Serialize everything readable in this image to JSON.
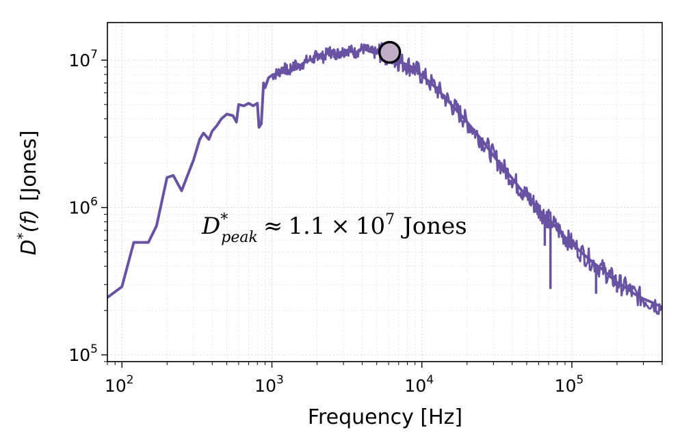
{
  "chart_data": {
    "type": "line",
    "title": "",
    "xlabel": "Frequency [Hz]",
    "ylabel_main": "D",
    "ylabel_sup": "*",
    "ylabel_rest": "(f)",
    "ylabel_unit": "[Jones]",
    "xscale": "log",
    "yscale": "log",
    "xlim": [
      80,
      400000
    ],
    "ylim": [
      90000,
      18000000
    ],
    "x_ticks": [
      {
        "value": 100,
        "base": "10",
        "exp": "2"
      },
      {
        "value": 1000,
        "base": "10",
        "exp": "3"
      },
      {
        "value": 10000,
        "base": "10",
        "exp": "4"
      },
      {
        "value": 100000,
        "base": "10",
        "exp": "5"
      }
    ],
    "y_ticks": [
      {
        "value": 100000,
        "base": "10",
        "exp": "5"
      },
      {
        "value": 1000000,
        "base": "10",
        "exp": "6"
      },
      {
        "value": 10000000,
        "base": "10",
        "exp": "7"
      }
    ],
    "grid": true,
    "line_color": "#6a52a3",
    "marker_fill": "#c0aec9",
    "series": [
      {
        "name": "D*(f)",
        "x": [
          80,
          100,
          120,
          150,
          170,
          200,
          220,
          250,
          300,
          330,
          350,
          380,
          400,
          430,
          460,
          500,
          550,
          580,
          600,
          650,
          700,
          750,
          800,
          820,
          850,
          880,
          900,
          950,
          1000,
          1100,
          1200,
          1300,
          1400,
          1500,
          1700,
          1900,
          2000,
          2200,
          2400,
          2600,
          2800,
          3000,
          3300,
          3600,
          4000,
          4400,
          4800,
          5200,
          5600,
          6000,
          6500,
          7000,
          8000,
          9000,
          10000,
          12000,
          14000,
          16000,
          18000,
          20000,
          23000,
          26000,
          30000,
          35000,
          40000,
          45000,
          50000,
          55000,
          60000,
          66000,
          70000,
          80000,
          90000,
          100000,
          120000,
          140000,
          160000,
          180000,
          200000,
          230000,
          260000,
          300000,
          350000,
          400000
        ],
        "y": [
          245000,
          290000,
          580000,
          580000,
          750000,
          1600000,
          1650000,
          1300000,
          2100000,
          2900000,
          3200000,
          2900000,
          3300000,
          3600000,
          4000000,
          4300000,
          4200000,
          3800000,
          5000000,
          4900000,
          5100000,
          4900000,
          5100000,
          3500000,
          3700000,
          7000000,
          6500000,
          7600000,
          7900000,
          8200000,
          8900000,
          8300000,
          9300000,
          9000000,
          9900000,
          10200000,
          11000000,
          10500000,
          11500000,
          11000000,
          11200000,
          11500000,
          11800000,
          11200000,
          12000000,
          11600000,
          11200000,
          11300000,
          11000000,
          10800000,
          10400000,
          9800000,
          9300000,
          8700000,
          7900000,
          6700000,
          5700000,
          4900000,
          4300000,
          3800000,
          3200000,
          2750000,
          2250000,
          1850000,
          1580000,
          1350000,
          1200000,
          1080000,
          970000,
          880000,
          830000,
          720000,
          630000,
          570000,
          480000,
          420000,
          380000,
          340000,
          310000,
          285000,
          260000,
          240000,
          225000,
          210000
        ]
      }
    ],
    "spikes": [
      {
        "x": 66000,
        "y": 550000
      },
      {
        "x": 72000,
        "y": 280000
      },
      {
        "x": 145000,
        "y": 260000
      },
      {
        "x": 200000,
        "y": 265000
      }
    ],
    "peak_marker": {
      "x": 6100,
      "y": 11300000
    },
    "annotation": {
      "symbol": "D",
      "sup": "*",
      "sub": "peak",
      "approx": "≈",
      "mantissa": "1.1",
      "times": "×",
      "base": "10",
      "exp": "7",
      "unit": "Jones"
    }
  }
}
